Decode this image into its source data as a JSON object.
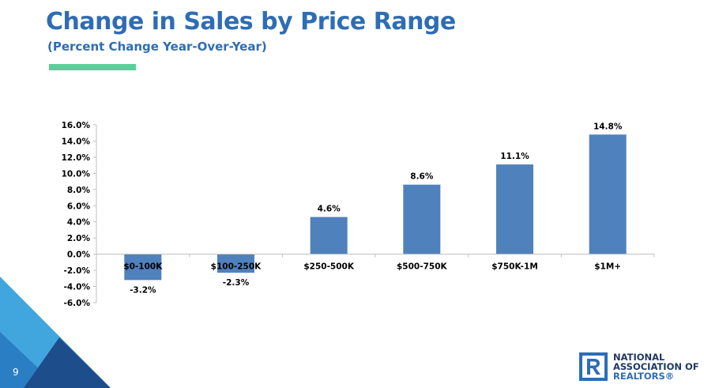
{
  "slide": {
    "title": "Change in Sales by Price Range",
    "subtitle": "(Percent Change Year-Over-Year)",
    "page_number": "9",
    "accent_color": "#5bcf9a",
    "title_color": "#2e6db4"
  },
  "logo": {
    "line1": "NATIONAL",
    "line2": "ASSOCIATION OF",
    "line3": "REALTORS®",
    "mark": "R"
  },
  "chart_data": {
    "type": "bar",
    "title": "",
    "xlabel": "",
    "ylabel": "",
    "categories": [
      "$0-100K",
      "$100-250K",
      "$250-500K",
      "$500-750K",
      "$750K-1M",
      "$1M+"
    ],
    "values": [
      -3.2,
      -2.3,
      4.6,
      8.6,
      11.1,
      14.8
    ],
    "data_labels": [
      "-3.2%",
      "-2.3%",
      "4.6%",
      "8.6%",
      "11.1%",
      "14.8%"
    ],
    "y_ticks": [
      "16.0%",
      "14.0%",
      "12.0%",
      "10.0%",
      "8.0%",
      "6.0%",
      "4.0%",
      "2.0%",
      "0.0%",
      "-2.0%",
      "-4.0%",
      "-6.0%"
    ],
    "ylim": [
      -6,
      16
    ],
    "bar_color": "#4f81bd",
    "grid": false,
    "legend": "none"
  }
}
